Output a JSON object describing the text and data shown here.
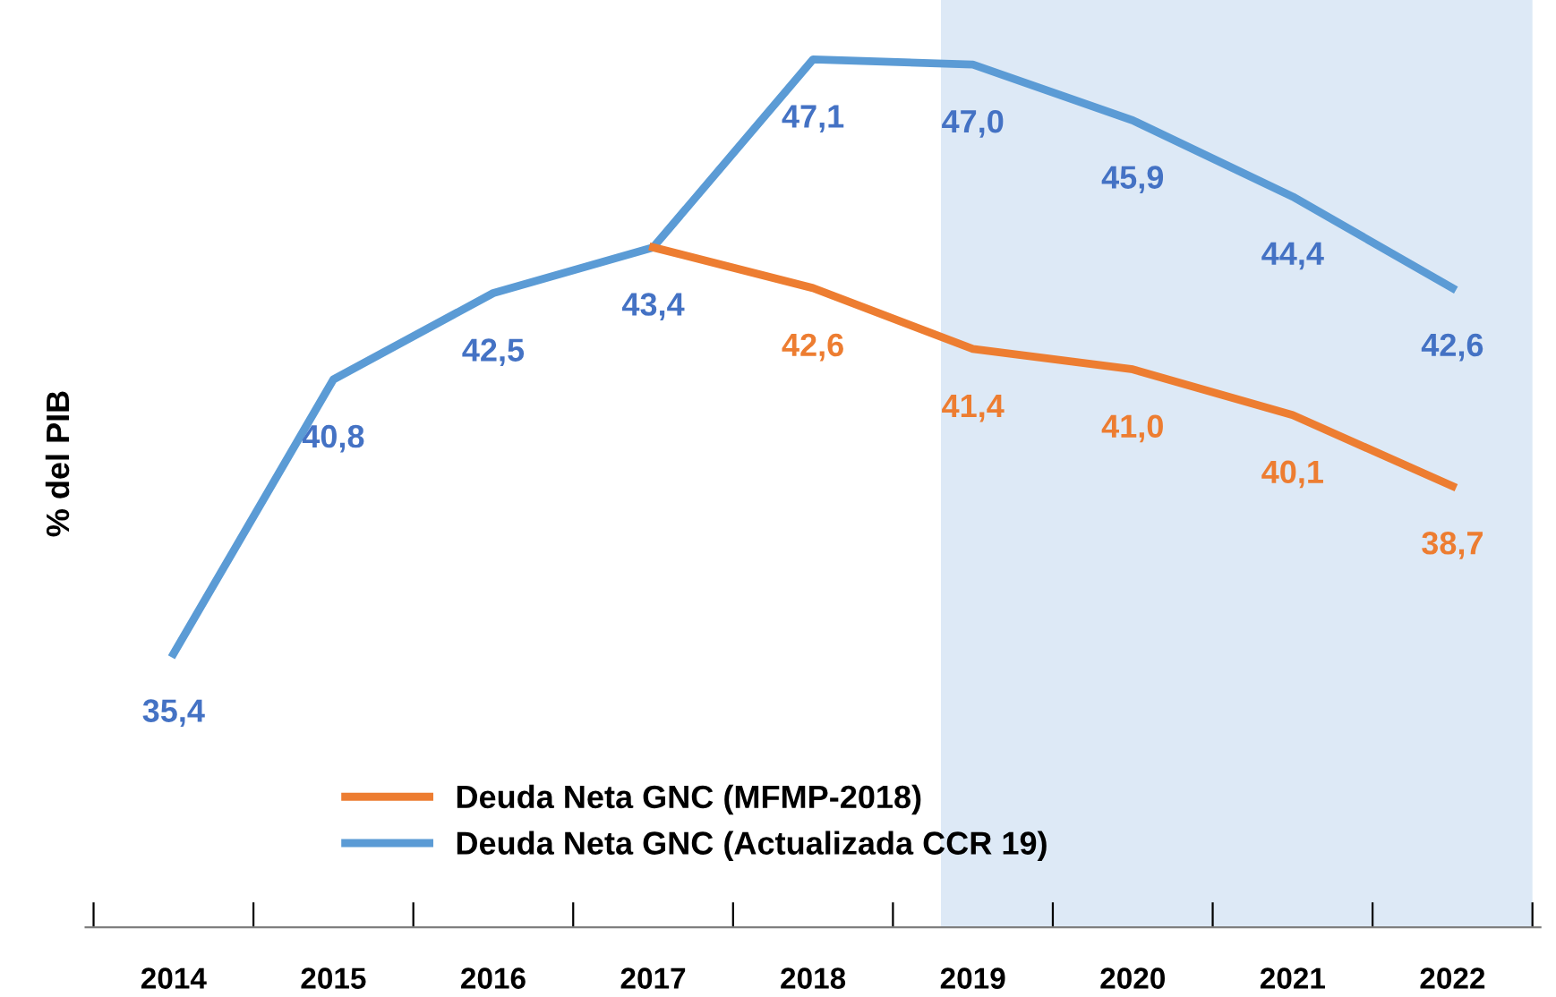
{
  "chart_data": {
    "type": "line",
    "ylabel": "% del PIB",
    "categories": [
      "2014",
      "2015",
      "2016",
      "2017",
      "2018",
      "2019",
      "2020",
      "2021",
      "2022"
    ],
    "series": [
      {
        "name": "Deuda Neta GNC (MFMP-2018)",
        "color": "#ed7d31",
        "values": [
          null,
          null,
          null,
          43.4,
          42.6,
          41.4,
          41.0,
          40.1,
          38.7
        ],
        "value_labels": [
          null,
          null,
          null,
          null,
          "42,6",
          "41,4",
          "41,0",
          "40,1",
          "38,7"
        ]
      },
      {
        "name": "Deuda Neta GNC (Actualizada CCR 19)",
        "color": "#5b9bd5",
        "values": [
          35.4,
          40.8,
          42.5,
          43.4,
          47.1,
          47.0,
          45.9,
          44.4,
          42.6
        ],
        "value_labels": [
          "35,4",
          "40,8",
          "42,5",
          "43,4",
          "47,1",
          "47,0",
          "45,9",
          "44,4",
          "42,6"
        ]
      }
    ],
    "bands": [
      {
        "axis": "x",
        "from": "2019",
        "to": "2022",
        "color": "#dde9f6"
      }
    ],
    "tick_labels": "x",
    "legend": "bottom",
    "grid": false,
    "marker": "none",
    "line_style": "solid"
  }
}
